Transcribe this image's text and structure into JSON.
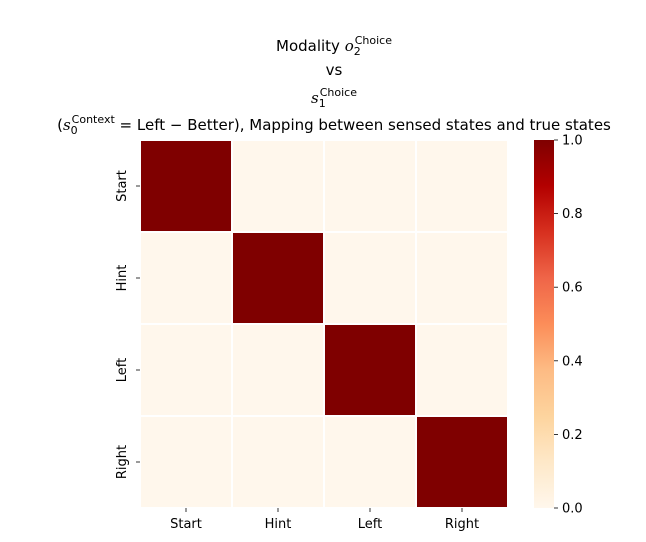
{
  "title": {
    "line1_prefix": "Modality ",
    "line1_var": "o",
    "line1_sub": "2",
    "line1_sup": "Choice",
    "line2": "vs",
    "line3_var": "s",
    "line3_sub": "1",
    "line3_sup": "Choice",
    "line4_open": "(",
    "line4_var": "s",
    "line4_sub": "0",
    "line4_sup": "Context",
    "line4_eq": " = Left − Better)",
    "line4_rest": ", Mapping between sensed states and true states"
  },
  "chart_data": {
    "type": "heatmap",
    "x_categories": [
      "Start",
      "Hint",
      "Left",
      "Right"
    ],
    "y_categories": [
      "Start",
      "Hint",
      "Left",
      "Right"
    ],
    "values": [
      [
        1,
        0,
        0,
        0
      ],
      [
        0,
        1,
        0,
        0
      ],
      [
        0,
        0,
        1,
        0
      ],
      [
        0,
        0,
        0,
        1
      ]
    ],
    "colormap": "OrRd",
    "color_min": "#fff7ec",
    "color_max": "#7f0000",
    "vmin": 0.0,
    "vmax": 1.0,
    "colorbar_ticks": [
      "0.0",
      "0.2",
      "0.4",
      "0.6",
      "0.8",
      "1.0"
    ],
    "grid_line_color": "#ffffff"
  }
}
